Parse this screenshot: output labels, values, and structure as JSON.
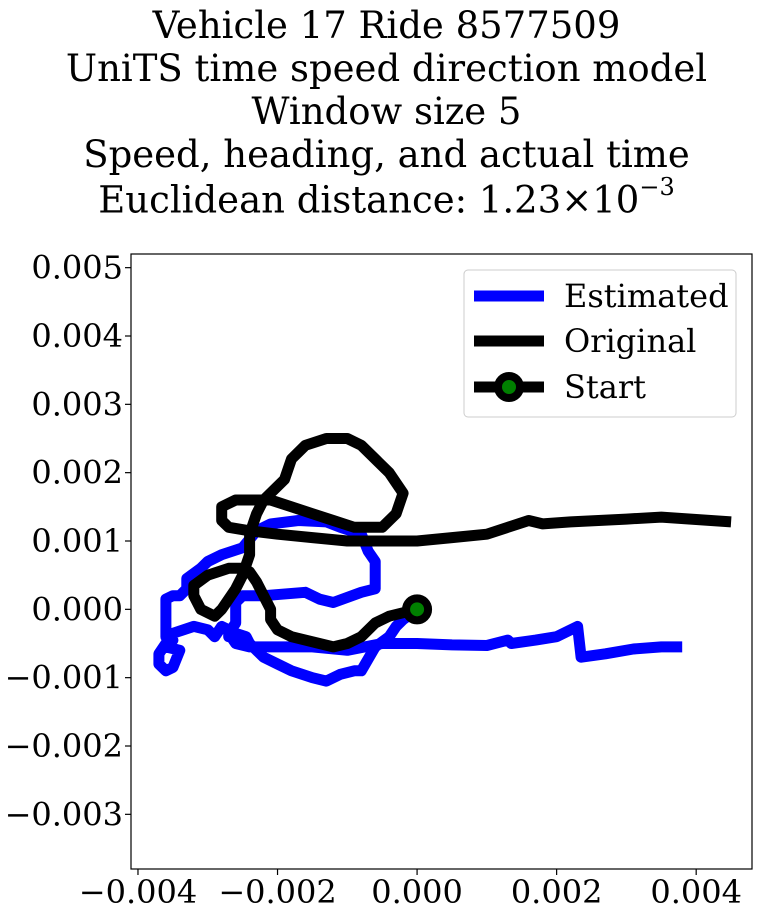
{
  "titles": {
    "line1": "Vehicle 17 Ride 8577509",
    "line2": "UniTS time speed direction model",
    "line3": "Window size 5",
    "line4": "Speed, heading, and actual time",
    "line5_prefix": "Euclidean distance: 1.23",
    "line5_times": "×",
    "line5_base": "10",
    "line5_exp": "−3"
  },
  "chart_data": {
    "type": "line",
    "title": "Vehicle 17 Ride 8577509 / UniTS time speed direction model / Window size 5 / Speed, heading, and actual time / Euclidean distance: 1.23×10^-3",
    "xlabel": "",
    "ylabel": "",
    "xlim": [
      -0.0041,
      0.0048
    ],
    "ylim": [
      -0.0038,
      0.0052
    ],
    "grid": false,
    "legend_position": "top-right",
    "x_ticks": [
      {
        "value": -0.004,
        "label": "−0.004"
      },
      {
        "value": -0.002,
        "label": "−0.002"
      },
      {
        "value": 0.0,
        "label": "0.000"
      },
      {
        "value": 0.002,
        "label": "0.002"
      },
      {
        "value": 0.004,
        "label": "0.004"
      }
    ],
    "y_ticks": [
      {
        "value": 0.005,
        "label": "0.005"
      },
      {
        "value": 0.004,
        "label": "0.004"
      },
      {
        "value": 0.003,
        "label": "0.003"
      },
      {
        "value": 0.002,
        "label": "0.002"
      },
      {
        "value": 0.001,
        "label": "0.001"
      },
      {
        "value": 0.0,
        "label": "0.000"
      },
      {
        "value": -0.001,
        "label": "−0.001"
      },
      {
        "value": -0.002,
        "label": "−0.002"
      },
      {
        "value": -0.003,
        "label": "−0.003"
      }
    ],
    "series": [
      {
        "name": "Estimated",
        "color": "#0000ff",
        "points": [
          [
            0.0,
            0.0
          ],
          [
            -0.0002,
            -0.00015
          ],
          [
            -0.0003,
            -0.00025
          ],
          [
            -0.0004,
            -0.0004
          ],
          [
            -0.0006,
            -0.00055
          ],
          [
            -0.0008,
            -0.0009
          ],
          [
            -0.0009,
            -0.0009
          ],
          [
            -0.0011,
            -0.00095
          ],
          [
            -0.0013,
            -0.00105
          ],
          [
            -0.0015,
            -0.001
          ],
          [
            -0.0018,
            -0.0009
          ],
          [
            -0.002,
            -0.0008
          ],
          [
            -0.0022,
            -0.0007
          ],
          [
            -0.0024,
            -0.0005
          ],
          [
            -0.00245,
            -0.0004
          ],
          [
            -0.0026,
            -0.00035
          ],
          [
            -0.0027,
            -0.0004
          ],
          [
            -0.0027,
            -0.0003
          ],
          [
            -0.0028,
            -0.00025
          ],
          [
            -0.0029,
            -0.0004
          ],
          [
            -0.003,
            -0.0003
          ],
          [
            -0.0032,
            -0.00025
          ],
          [
            -0.0035,
            -0.00035
          ],
          [
            -0.0036,
            -0.00055
          ],
          [
            -0.0034,
            -0.0006
          ],
          [
            -0.0035,
            -0.00085
          ],
          [
            -0.0036,
            -0.0009
          ],
          [
            -0.0037,
            -0.0008
          ],
          [
            -0.0037,
            -0.00065
          ],
          [
            -0.0036,
            -0.0005
          ],
          [
            -0.0035,
            -0.00045
          ],
          [
            -0.0036,
            -0.0004
          ],
          [
            -0.0036,
            0.00015
          ],
          [
            -0.0035,
            0.0002
          ],
          [
            -0.0034,
            0.0002
          ],
          [
            -0.0033,
            0.0003
          ],
          [
            -0.0033,
            0.00045
          ],
          [
            -0.0031,
            0.0006
          ],
          [
            -0.003,
            0.0007
          ],
          [
            -0.0028,
            0.0008
          ],
          [
            -0.0025,
            0.0009
          ],
          [
            -0.0023,
            0.00115
          ],
          [
            -0.0021,
            0.00125
          ],
          [
            -0.0017,
            0.0013
          ],
          [
            -0.0013,
            0.00128
          ],
          [
            -0.0011,
            0.0012
          ],
          [
            -0.0008,
            0.0011
          ],
          [
            -0.0007,
            0.00085
          ],
          [
            -0.0006,
            0.0007
          ],
          [
            -0.0006,
            0.0003
          ],
          [
            -0.0008,
            0.00025
          ],
          [
            -0.0012,
            0.0001
          ],
          [
            -0.0014,
            0.00015
          ],
          [
            -0.0016,
            0.00025
          ],
          [
            -0.0022,
            0.0002
          ],
          [
            -0.0025,
            0.0002
          ],
          [
            -0.0026,
            0.0001
          ],
          [
            -0.0026,
            -0.0002
          ],
          [
            -0.0027,
            -0.00035
          ],
          [
            -0.0026,
            -0.0005
          ],
          [
            -0.0024,
            -0.00055
          ],
          [
            -0.002,
            -0.00055
          ],
          [
            -0.0015,
            -0.00055
          ],
          [
            -0.001,
            -0.0006
          ],
          [
            -0.0005,
            -0.0005
          ],
          [
            0.0,
            -0.0005
          ],
          [
            0.0005,
            -0.00052
          ],
          [
            0.001,
            -0.00053
          ],
          [
            0.0013,
            -0.00045
          ],
          [
            0.00135,
            -0.0005
          ],
          [
            0.0017,
            -0.00045
          ],
          [
            0.002,
            -0.0004
          ],
          [
            0.0023,
            -0.00025
          ],
          [
            0.00235,
            -0.0007
          ],
          [
            0.0027,
            -0.00065
          ],
          [
            0.0031,
            -0.00058
          ],
          [
            0.0035,
            -0.00055
          ],
          [
            0.0038,
            -0.00055
          ]
        ]
      },
      {
        "name": "Original",
        "color": "#000000",
        "points": [
          [
            0.0,
            0.0
          ],
          [
            -0.0004,
            -0.0001
          ],
          [
            -0.0006,
            -0.0002
          ],
          [
            -0.0008,
            -0.0004
          ],
          [
            -0.001,
            -0.0005
          ],
          [
            -0.0012,
            -0.00055
          ],
          [
            -0.0014,
            -0.0005
          ],
          [
            -0.0018,
            -0.0004
          ],
          [
            -0.002,
            -0.0003
          ],
          [
            -0.0021,
            -0.00015
          ],
          [
            -0.0021,
            0.0
          ],
          [
            -0.0022,
            0.0002
          ],
          [
            -0.0023,
            0.0004
          ],
          [
            -0.0024,
            0.00055
          ],
          [
            -0.0025,
            0.0006
          ],
          [
            -0.0027,
            0.0006
          ],
          [
            -0.003,
            0.0005
          ],
          [
            -0.0032,
            0.00035
          ],
          [
            -0.0032,
            0.0002
          ],
          [
            -0.0031,
            0.0
          ],
          [
            -0.0029,
            -0.0001
          ],
          [
            -0.0028,
            0.0
          ],
          [
            -0.0026,
            0.0003
          ],
          [
            -0.0025,
            0.0005
          ],
          [
            -0.0024,
            0.0008
          ],
          [
            -0.0024,
            0.0011
          ],
          [
            -0.0023,
            0.0014
          ],
          [
            -0.0022,
            0.0016
          ],
          [
            -0.0019,
            0.0019
          ],
          [
            -0.0018,
            0.0022
          ],
          [
            -0.0016,
            0.0024
          ],
          [
            -0.0013,
            0.0025
          ],
          [
            -0.001,
            0.0025
          ],
          [
            -0.0008,
            0.0024
          ],
          [
            -0.0004,
            0.002
          ],
          [
            -0.0002,
            0.0017
          ],
          [
            -0.0003,
            0.0014
          ],
          [
            -0.0005,
            0.0012
          ],
          [
            -0.0009,
            0.0012
          ],
          [
            -0.0012,
            0.0013
          ],
          [
            -0.0015,
            0.0014
          ],
          [
            -0.0018,
            0.0015
          ],
          [
            -0.0021,
            0.0016
          ],
          [
            -0.0023,
            0.0016
          ],
          [
            -0.0026,
            0.0016
          ],
          [
            -0.0028,
            0.0015
          ],
          [
            -0.0028,
            0.0013
          ],
          [
            -0.0027,
            0.0012
          ],
          [
            -0.0024,
            0.00115
          ],
          [
            -0.002,
            0.0011
          ],
          [
            -0.0015,
            0.00105
          ],
          [
            -0.001,
            0.001
          ],
          [
            0.0,
            0.001
          ],
          [
            0.0005,
            0.00105
          ],
          [
            0.001,
            0.0011
          ],
          [
            0.0013,
            0.0012
          ],
          [
            0.0016,
            0.0013
          ],
          [
            0.0018,
            0.00125
          ],
          [
            0.0022,
            0.00128
          ],
          [
            0.0026,
            0.0013
          ],
          [
            0.003,
            0.00132
          ],
          [
            0.0035,
            0.00135
          ],
          [
            0.0045,
            0.00128
          ]
        ]
      }
    ],
    "start_point": {
      "name": "Start",
      "x": 0.0,
      "y": 0.0,
      "edge_color": "#000000",
      "face_color": "#008000"
    }
  }
}
